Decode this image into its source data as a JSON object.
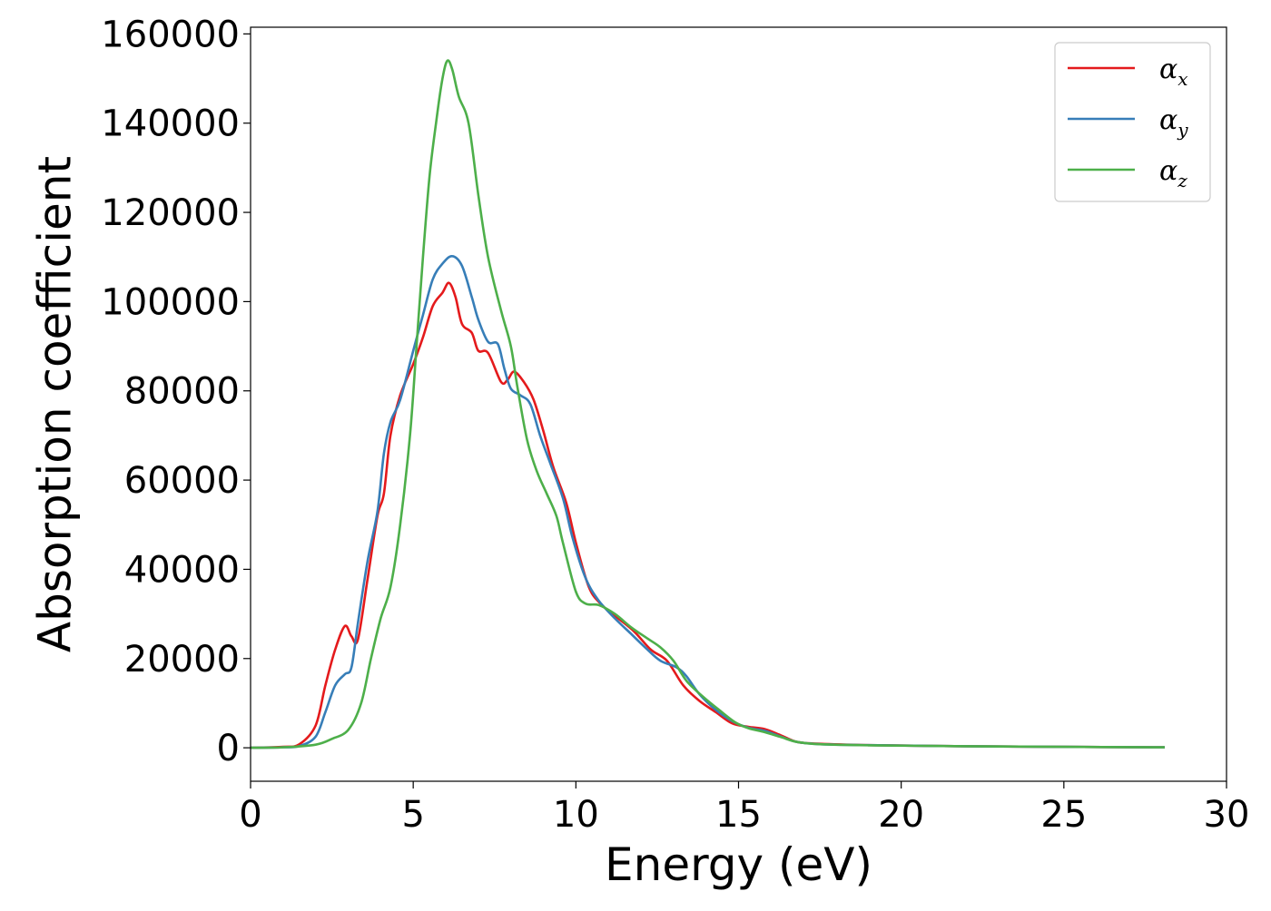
{
  "chart_data": {
    "type": "line",
    "title": "",
    "xlabel": "Energy (eV)",
    "ylabel": "Absorption coefficient",
    "xlim": [
      0,
      30
    ],
    "ylim": [
      -7500,
      161500
    ],
    "xticks": [
      0,
      5,
      10,
      15,
      20,
      25,
      30
    ],
    "yticks": [
      0,
      20000,
      40000,
      60000,
      80000,
      100000,
      120000,
      140000,
      160000
    ],
    "grid": false,
    "legend_position": "top-right",
    "series": [
      {
        "name": "α_x",
        "symbol": "α",
        "subscript": "x",
        "color": "#e41a1c",
        "points": [
          [
            0,
            0
          ],
          [
            1,
            200
          ],
          [
            1.5,
            800
          ],
          [
            2,
            5000
          ],
          [
            2.3,
            14000
          ],
          [
            2.6,
            22000
          ],
          [
            2.9,
            27300
          ],
          [
            3.1,
            25000
          ],
          [
            3.3,
            24300
          ],
          [
            3.6,
            38000
          ],
          [
            3.9,
            52000
          ],
          [
            4.1,
            57000
          ],
          [
            4.3,
            70000
          ],
          [
            4.6,
            79000
          ],
          [
            5.0,
            86000
          ],
          [
            5.3,
            92000
          ],
          [
            5.6,
            99000
          ],
          [
            5.9,
            102000
          ],
          [
            6.1,
            104200
          ],
          [
            6.3,
            101000
          ],
          [
            6.5,
            95000
          ],
          [
            6.8,
            93000
          ],
          [
            7.0,
            89000
          ],
          [
            7.3,
            88500
          ],
          [
            7.7,
            82000
          ],
          [
            7.9,
            82500
          ],
          [
            8.1,
            84300
          ],
          [
            8.4,
            82000
          ],
          [
            8.7,
            78000
          ],
          [
            9.0,
            71000
          ],
          [
            9.3,
            63000
          ],
          [
            9.7,
            55000
          ],
          [
            10.0,
            46000
          ],
          [
            10.4,
            36000
          ],
          [
            10.8,
            32000
          ],
          [
            11.3,
            29000
          ],
          [
            11.8,
            26000
          ],
          [
            12.3,
            22000
          ],
          [
            12.8,
            19500
          ],
          [
            13.3,
            14000
          ],
          [
            13.8,
            10500
          ],
          [
            14.3,
            8000
          ],
          [
            14.8,
            5500
          ],
          [
            15.3,
            4700
          ],
          [
            15.8,
            4200
          ],
          [
            16.3,
            2800
          ],
          [
            16.8,
            1300
          ],
          [
            17.5,
            900
          ],
          [
            19,
            600
          ],
          [
            22,
            350
          ],
          [
            25,
            200
          ],
          [
            28.1,
            100
          ]
        ]
      },
      {
        "name": "α_y",
        "symbol": "α",
        "subscript": "y",
        "color": "#377eb8",
        "points": [
          [
            0,
            0
          ],
          [
            1,
            100
          ],
          [
            1.5,
            400
          ],
          [
            2,
            2500
          ],
          [
            2.3,
            8000
          ],
          [
            2.6,
            14000
          ],
          [
            2.9,
            16500
          ],
          [
            3.1,
            18000
          ],
          [
            3.3,
            28000
          ],
          [
            3.6,
            42000
          ],
          [
            3.9,
            53000
          ],
          [
            4.1,
            66000
          ],
          [
            4.3,
            73000
          ],
          [
            4.6,
            78000
          ],
          [
            5.0,
            89000
          ],
          [
            5.3,
            97000
          ],
          [
            5.6,
            105000
          ],
          [
            5.9,
            108500
          ],
          [
            6.2,
            110200
          ],
          [
            6.5,
            108000
          ],
          [
            6.8,
            101000
          ],
          [
            7.0,
            96000
          ],
          [
            7.3,
            91000
          ],
          [
            7.6,
            90500
          ],
          [
            7.8,
            85000
          ],
          [
            8.0,
            80500
          ],
          [
            8.3,
            79000
          ],
          [
            8.6,
            77000
          ],
          [
            8.9,
            70000
          ],
          [
            9.2,
            64000
          ],
          [
            9.6,
            56000
          ],
          [
            9.9,
            47000
          ],
          [
            10.3,
            38000
          ],
          [
            10.7,
            33000
          ],
          [
            11.2,
            29000
          ],
          [
            11.7,
            25500
          ],
          [
            12.2,
            22000
          ],
          [
            12.6,
            19500
          ],
          [
            13.1,
            18000
          ],
          [
            13.4,
            16000
          ],
          [
            13.8,
            12000
          ],
          [
            14.3,
            8500
          ],
          [
            14.8,
            6000
          ],
          [
            15.3,
            4500
          ],
          [
            15.8,
            3800
          ],
          [
            16.3,
            2500
          ],
          [
            16.8,
            1300
          ],
          [
            17.5,
            800
          ],
          [
            19,
            600
          ],
          [
            22,
            350
          ],
          [
            25,
            200
          ],
          [
            28.1,
            100
          ]
        ]
      },
      {
        "name": "α_z",
        "symbol": "α",
        "subscript": "z",
        "color": "#4daf4a",
        "points": [
          [
            0,
            0
          ],
          [
            1,
            100
          ],
          [
            2,
            700
          ],
          [
            2.5,
            2000
          ],
          [
            3.0,
            4000
          ],
          [
            3.4,
            10000
          ],
          [
            3.7,
            20000
          ],
          [
            4.0,
            29000
          ],
          [
            4.3,
            36000
          ],
          [
            4.6,
            50000
          ],
          [
            4.9,
            70000
          ],
          [
            5.1,
            90000
          ],
          [
            5.3,
            110000
          ],
          [
            5.5,
            128000
          ],
          [
            5.7,
            140000
          ],
          [
            5.9,
            150000
          ],
          [
            6.05,
            154000
          ],
          [
            6.2,
            152000
          ],
          [
            6.4,
            146000
          ],
          [
            6.7,
            140000
          ],
          [
            7.0,
            124000
          ],
          [
            7.3,
            110000
          ],
          [
            7.7,
            98000
          ],
          [
            8.0,
            90000
          ],
          [
            8.2,
            81000
          ],
          [
            8.5,
            69000
          ],
          [
            8.8,
            62000
          ],
          [
            9.1,
            57000
          ],
          [
            9.4,
            52000
          ],
          [
            9.6,
            46000
          ],
          [
            10.0,
            35000
          ],
          [
            10.3,
            32300
          ],
          [
            10.7,
            32000
          ],
          [
            11.2,
            30000
          ],
          [
            11.7,
            27000
          ],
          [
            12.2,
            24500
          ],
          [
            12.6,
            22500
          ],
          [
            13.0,
            19500
          ],
          [
            13.4,
            15000
          ],
          [
            13.9,
            11500
          ],
          [
            14.4,
            8500
          ],
          [
            14.9,
            5700
          ],
          [
            15.3,
            4400
          ],
          [
            15.8,
            3500
          ],
          [
            16.3,
            2400
          ],
          [
            16.8,
            1300
          ],
          [
            17.5,
            800
          ],
          [
            19,
            550
          ],
          [
            22,
            350
          ],
          [
            25,
            200
          ],
          [
            28.1,
            100
          ]
        ]
      }
    ]
  }
}
